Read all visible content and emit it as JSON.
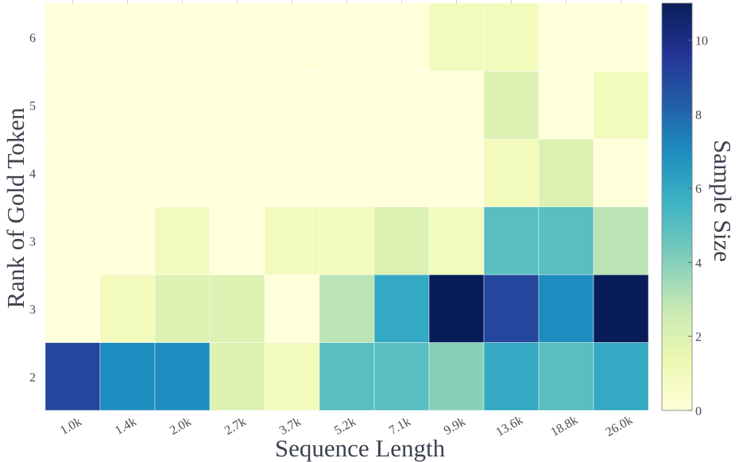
{
  "chart_data": {
    "type": "heatmap",
    "xlabel": "Sequence Length",
    "ylabel": "Rank of Gold Token",
    "x_categories": [
      "1.0k",
      "1.4k",
      "2.0k",
      "2.7k",
      "3.7k",
      "5.2k",
      "7.1k",
      "9.9k",
      "13.6k",
      "18.8k",
      "26.0k"
    ],
    "y_categories": [
      "2",
      "3",
      "3",
      "4",
      "5",
      "6"
    ],
    "values": [
      [
        9,
        7,
        7,
        2,
        1,
        5,
        5,
        4,
        6,
        5,
        6
      ],
      [
        0,
        1,
        2,
        2,
        0,
        3,
        6,
        11,
        9,
        7,
        11
      ],
      [
        0,
        0,
        1,
        0,
        1,
        1,
        2,
        1,
        5,
        5,
        3
      ],
      [
        0,
        0,
        0,
        0,
        0,
        0,
        0,
        0,
        1,
        2,
        0
      ],
      [
        0,
        0,
        0,
        0,
        0,
        0,
        0,
        0,
        2,
        0,
        1
      ],
      [
        0,
        0,
        0,
        0,
        0,
        0,
        0,
        1,
        1,
        0,
        0
      ]
    ],
    "colorbar": {
      "label": "Sample Size",
      "range": [
        0,
        11
      ],
      "ticks": [
        "0",
        "2",
        "4",
        "6",
        "8",
        "10"
      ],
      "colormap": "YlGnBu"
    }
  }
}
